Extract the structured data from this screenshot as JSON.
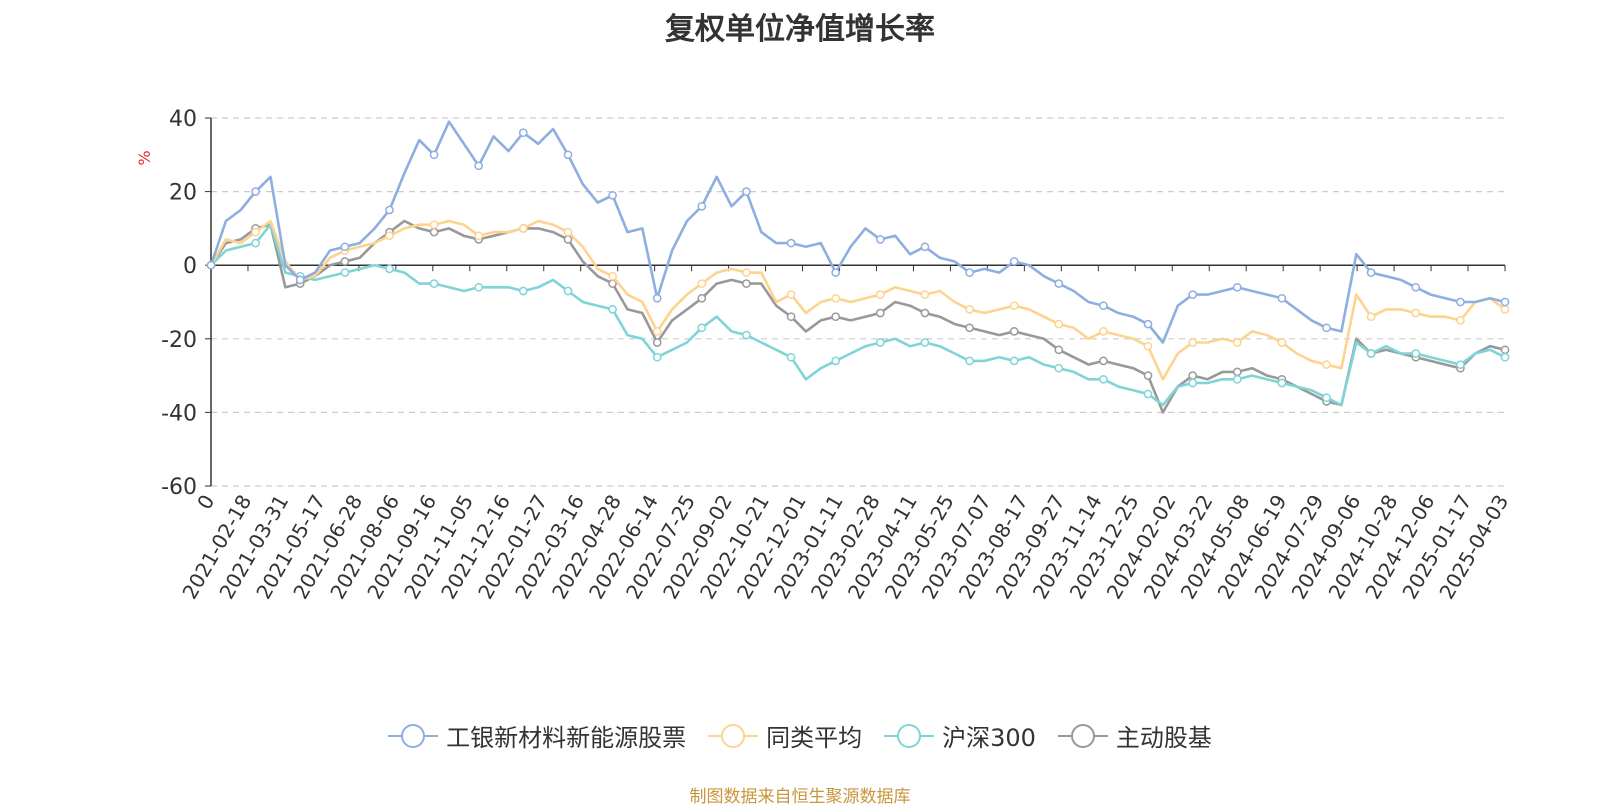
{
  "chart_data": {
    "type": "line",
    "title": "复权单位净值增长率",
    "ylabel": "%",
    "ylim": [
      -60,
      40
    ],
    "yticks": [
      -60,
      -40,
      -20,
      0,
      20,
      40
    ],
    "x_tick_labels": [
      "0",
      "2021-02-18",
      "2021-03-31",
      "2021-05-17",
      "2021-06-28",
      "2021-08-06",
      "2021-09-16",
      "2021-11-05",
      "2021-12-16",
      "2022-01-27",
      "2022-03-16",
      "2022-04-28",
      "2022-06-14",
      "2022-07-25",
      "2022-09-02",
      "2022-10-21",
      "2022-12-01",
      "2023-01-11",
      "2023-02-28",
      "2023-04-11",
      "2023-05-25",
      "2023-07-07",
      "2023-08-17",
      "2023-09-27",
      "2023-11-14",
      "2023-12-25",
      "2024-02-02",
      "2024-03-22",
      "2024-05-08",
      "2024-06-19",
      "2024-07-29",
      "2024-09-06",
      "2024-10-28",
      "2024-12-06",
      "2025-01-17",
      "2025-04-03"
    ],
    "grid": true,
    "legend_position": "bottom",
    "series": [
      {
        "name": "工银新材料新能源股票",
        "color": "#8eaee0",
        "values": [
          0,
          12,
          15,
          20,
          24,
          0,
          -4,
          -2,
          4,
          5,
          6,
          10,
          15,
          25,
          34,
          30,
          39,
          33,
          27,
          35,
          31,
          36,
          33,
          37,
          30,
          22,
          17,
          19,
          9,
          10,
          -9,
          4,
          12,
          16,
          24,
          16,
          20,
          9,
          6,
          6,
          5,
          6,
          -2,
          5,
          10,
          7,
          8,
          3,
          5,
          2,
          1,
          -2,
          -1,
          -2,
          1,
          0,
          -3,
          -5,
          -7,
          -10,
          -11,
          -13,
          -14,
          -16,
          -21,
          -11,
          -8,
          -8,
          -7,
          -6,
          -7,
          -8,
          -9,
          -12,
          -15,
          -17,
          -18,
          3,
          -2,
          -3,
          -4,
          -6,
          -8,
          -9,
          -10,
          -10,
          -9,
          -10
        ]
      },
      {
        "name": "同类平均",
        "color": "#fdd38f",
        "values": [
          0,
          7,
          6,
          9,
          12,
          1,
          -4,
          -3,
          2,
          4,
          5,
          6,
          8,
          10,
          11,
          11,
          12,
          11,
          8,
          9,
          9,
          10,
          12,
          11,
          9,
          5,
          -1,
          -3,
          -8,
          -10,
          -18,
          -12,
          -8,
          -5,
          -2,
          -1,
          -2,
          -2,
          -10,
          -8,
          -13,
          -10,
          -9,
          -10,
          -9,
          -8,
          -6,
          -7,
          -8,
          -7,
          -10,
          -12,
          -13,
          -12,
          -11,
          -12,
          -14,
          -16,
          -17,
          -20,
          -18,
          -19,
          -20,
          -22,
          -31,
          -24,
          -21,
          -21,
          -20,
          -21,
          -18,
          -19,
          -21,
          -24,
          -26,
          -27,
          -28,
          -8,
          -14,
          -12,
          -12,
          -13,
          -14,
          -14,
          -15,
          -10,
          -9,
          -12
        ]
      },
      {
        "name": "沪深300",
        "color": "#7fd4d7",
        "values": [
          0,
          4,
          5,
          6,
          11,
          -2,
          -3,
          -4,
          -3,
          -2,
          -1,
          0,
          -1,
          -2,
          -5,
          -5,
          -6,
          -7,
          -6,
          -6,
          -6,
          -7,
          -6,
          -4,
          -7,
          -10,
          -11,
          -12,
          -19,
          -20,
          -25,
          -23,
          -21,
          -17,
          -14,
          -18,
          -19,
          -21,
          -23,
          -25,
          -31,
          -28,
          -26,
          -24,
          -22,
          -21,
          -20,
          -22,
          -21,
          -22,
          -24,
          -26,
          -26,
          -25,
          -26,
          -25,
          -27,
          -28,
          -29,
          -31,
          -31,
          -33,
          -34,
          -35,
          -38,
          -33,
          -32,
          -32,
          -31,
          -31,
          -30,
          -31,
          -32,
          -33,
          -34,
          -36,
          -38,
          -21,
          -24,
          -22,
          -24,
          -24,
          -25,
          -26,
          -27,
          -24,
          -23,
          -25
        ]
      },
      {
        "name": "主动股基",
        "color": "#999999",
        "values": [
          0,
          6,
          7,
          10,
          11,
          -6,
          -5,
          -3,
          0,
          1,
          2,
          6,
          9,
          12,
          10,
          9,
          10,
          8,
          7,
          8,
          9,
          10,
          10,
          9,
          7,
          1,
          -3,
          -5,
          -12,
          -13,
          -21,
          -15,
          -12,
          -9,
          -5,
          -4,
          -5,
          -5,
          -11,
          -14,
          -18,
          -15,
          -14,
          -15,
          -14,
          -13,
          -10,
          -11,
          -13,
          -14,
          -16,
          -17,
          -18,
          -19,
          -18,
          -19,
          -20,
          -23,
          -25,
          -27,
          -26,
          -27,
          -28,
          -30,
          -40,
          -33,
          -30,
          -31,
          -29,
          -29,
          -28,
          -30,
          -31,
          -33,
          -35,
          -37,
          -38,
          -20,
          -24,
          -23,
          -24,
          -25,
          -26,
          -27,
          -28,
          -24,
          -22,
          -23
        ]
      }
    ]
  },
  "source_note": "制图数据来自恒生聚源数据库"
}
